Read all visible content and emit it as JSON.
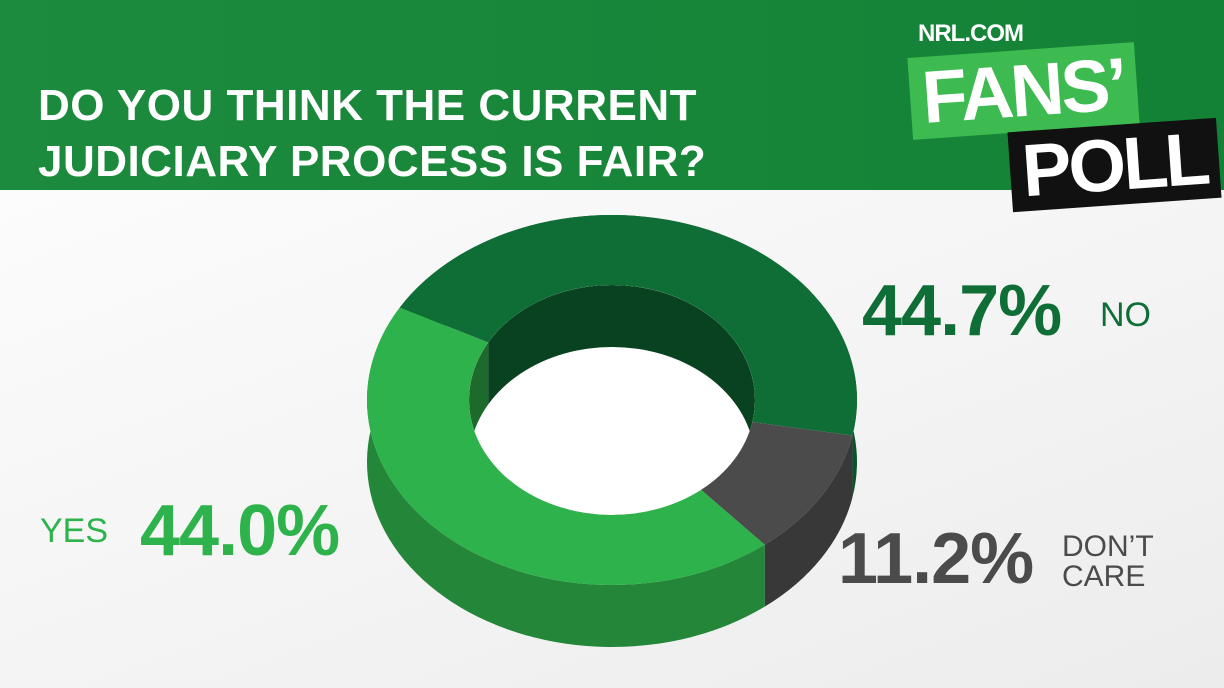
{
  "branding": {
    "site": "NRL.COM",
    "line1": "FANS’",
    "line2": "POLL"
  },
  "chart_data": {
    "type": "donut",
    "title": "DO YOU THINK THE CURRENT JUDICIARY PROCESS IS FAIR?",
    "categories": [
      "NO",
      "DON’T CARE",
      "YES"
    ],
    "values": [
      44.7,
      11.2,
      44.0
    ],
    "value_labels": [
      "44.7%",
      "11.2%",
      "44.0%"
    ],
    "colors": [
      "#0f6e36",
      "#4b4b4b",
      "#2eb24b"
    ]
  }
}
